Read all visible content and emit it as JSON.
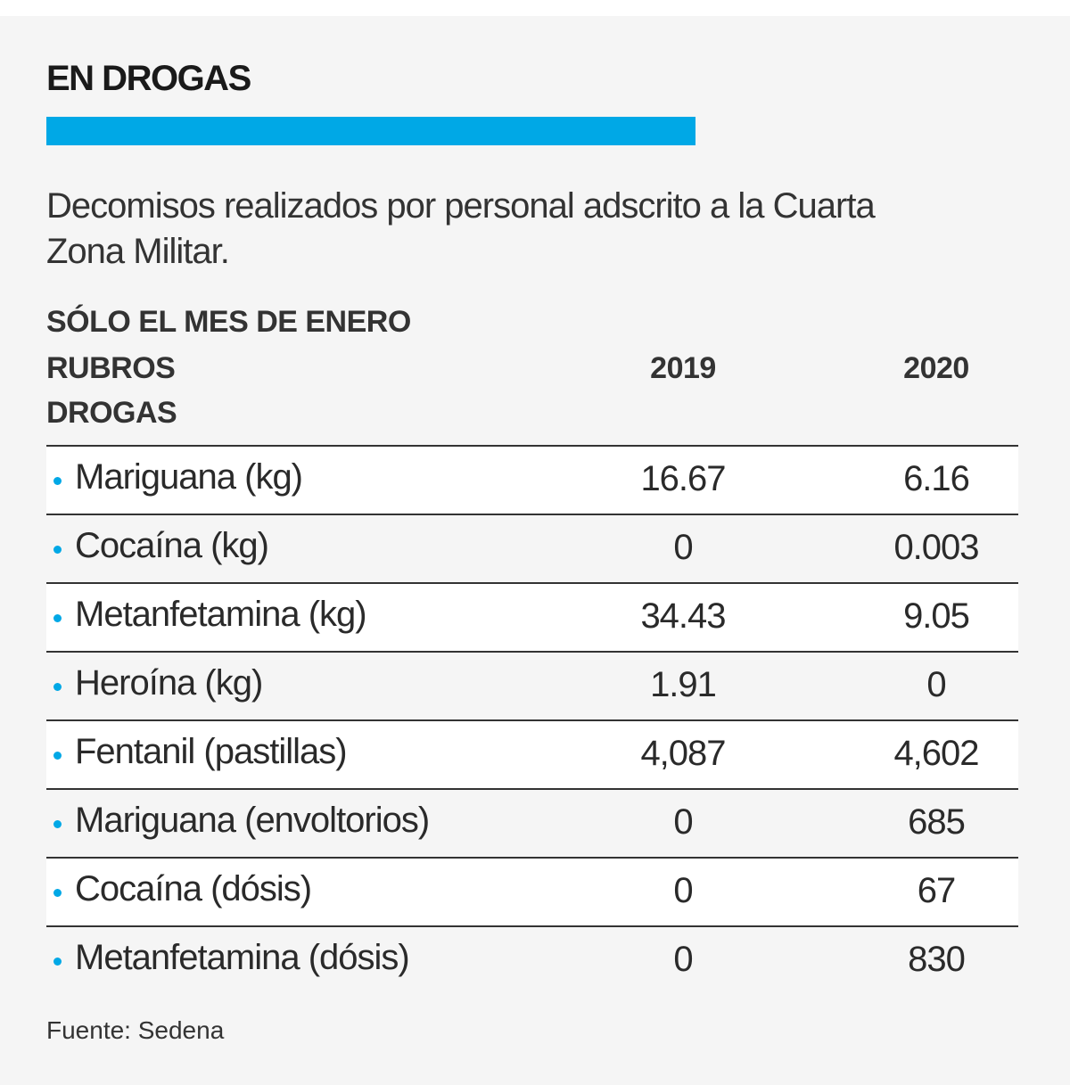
{
  "title": "EN DROGAS",
  "subtitle": "Decomisos realizados por personal adscrito a la Cuarta Zona Militar.",
  "accent_color": "#00a8e6",
  "chart_data": {
    "type": "table",
    "caption": "SÓLO EL MES DE ENERO",
    "columns": [
      "RUBROS DROGAS",
      "2019",
      "2020"
    ],
    "column_header_lines": [
      "RUBROS",
      "DROGAS"
    ],
    "rows": [
      {
        "label": "Mariguana (kg)",
        "v2019": "16.67",
        "v2020": "6.16"
      },
      {
        "label": "Cocaína (kg)",
        "v2019": "0",
        "v2020": "0.003"
      },
      {
        "label": "Metanfetamina (kg)",
        "v2019": "34.43",
        "v2020": "9.05"
      },
      {
        "label": "Heroína (kg)",
        "v2019": "1.91",
        "v2020": "0"
      },
      {
        "label": "Fentanil (pastillas)",
        "v2019": "4,087",
        "v2020": "4,602"
      },
      {
        "label": "Mariguana (envoltorios)",
        "v2019": "0",
        "v2020": "685"
      },
      {
        "label": "Cocaína (dósis)",
        "v2019": "0",
        "v2020": "67"
      },
      {
        "label": "Metanfetamina (dósis)",
        "v2019": "0",
        "v2020": "830"
      }
    ]
  },
  "source": "Fuente: Sedena"
}
